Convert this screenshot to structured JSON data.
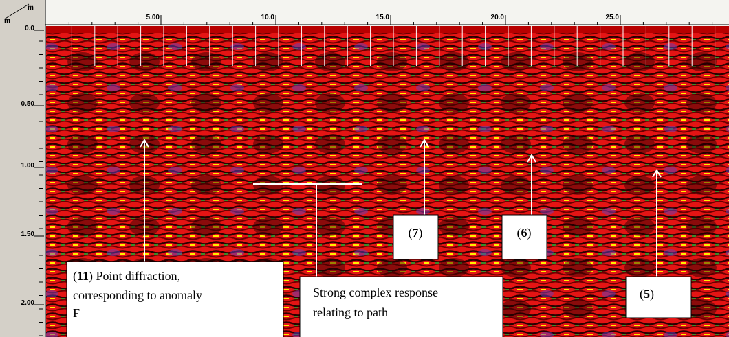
{
  "axis_units": {
    "x": "m",
    "y": "m"
  },
  "x_axis": {
    "ticks": [
      "5.00",
      "10.0",
      "15.0",
      "20.0",
      "25.0"
    ]
  },
  "y_axis": {
    "ticks": [
      "0.0",
      "0.50",
      "1.00",
      "1.50",
      "2.00"
    ]
  },
  "annotations": [
    {
      "open": "(",
      "number": "11",
      "close": ") Point diffraction,",
      "lines": [
        "corresponding to anomaly",
        "F"
      ]
    },
    {
      "lines": [
        "Strong complex response",
        "relating to path"
      ]
    },
    {
      "open": "(",
      "number": "7",
      "close": ")"
    },
    {
      "open": "(",
      "number": "6",
      "close": ")"
    },
    {
      "open": "(",
      "number": "5",
      "close": ")"
    }
  ]
}
